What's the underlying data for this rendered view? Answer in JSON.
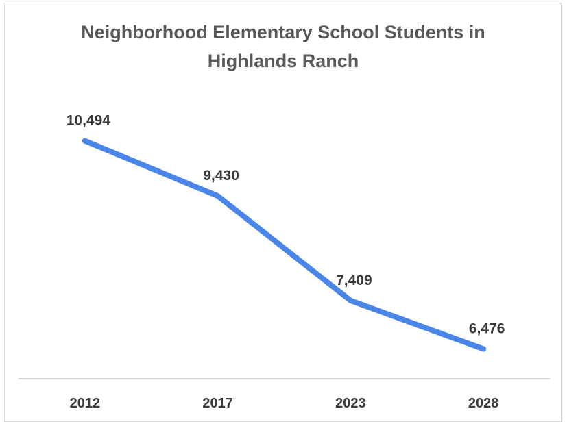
{
  "chart_data": {
    "type": "line",
    "title": [
      "Neighborhood Elementary School Students in",
      "Highlands Ranch"
    ],
    "xlabel": "",
    "ylabel": "",
    "categories": [
      "2012",
      "2017",
      "2023",
      "2028"
    ],
    "series": [
      {
        "values": [
          10494,
          9430,
          7409,
          6476
        ],
        "labels": [
          "10,494",
          "9,430",
          "7,409",
          "6,476"
        ],
        "color": "#4a86e8"
      }
    ],
    "ylim": [
      5900,
      11600
    ],
    "grid": false,
    "legend": "none",
    "axis_color": "#cccccc"
  }
}
